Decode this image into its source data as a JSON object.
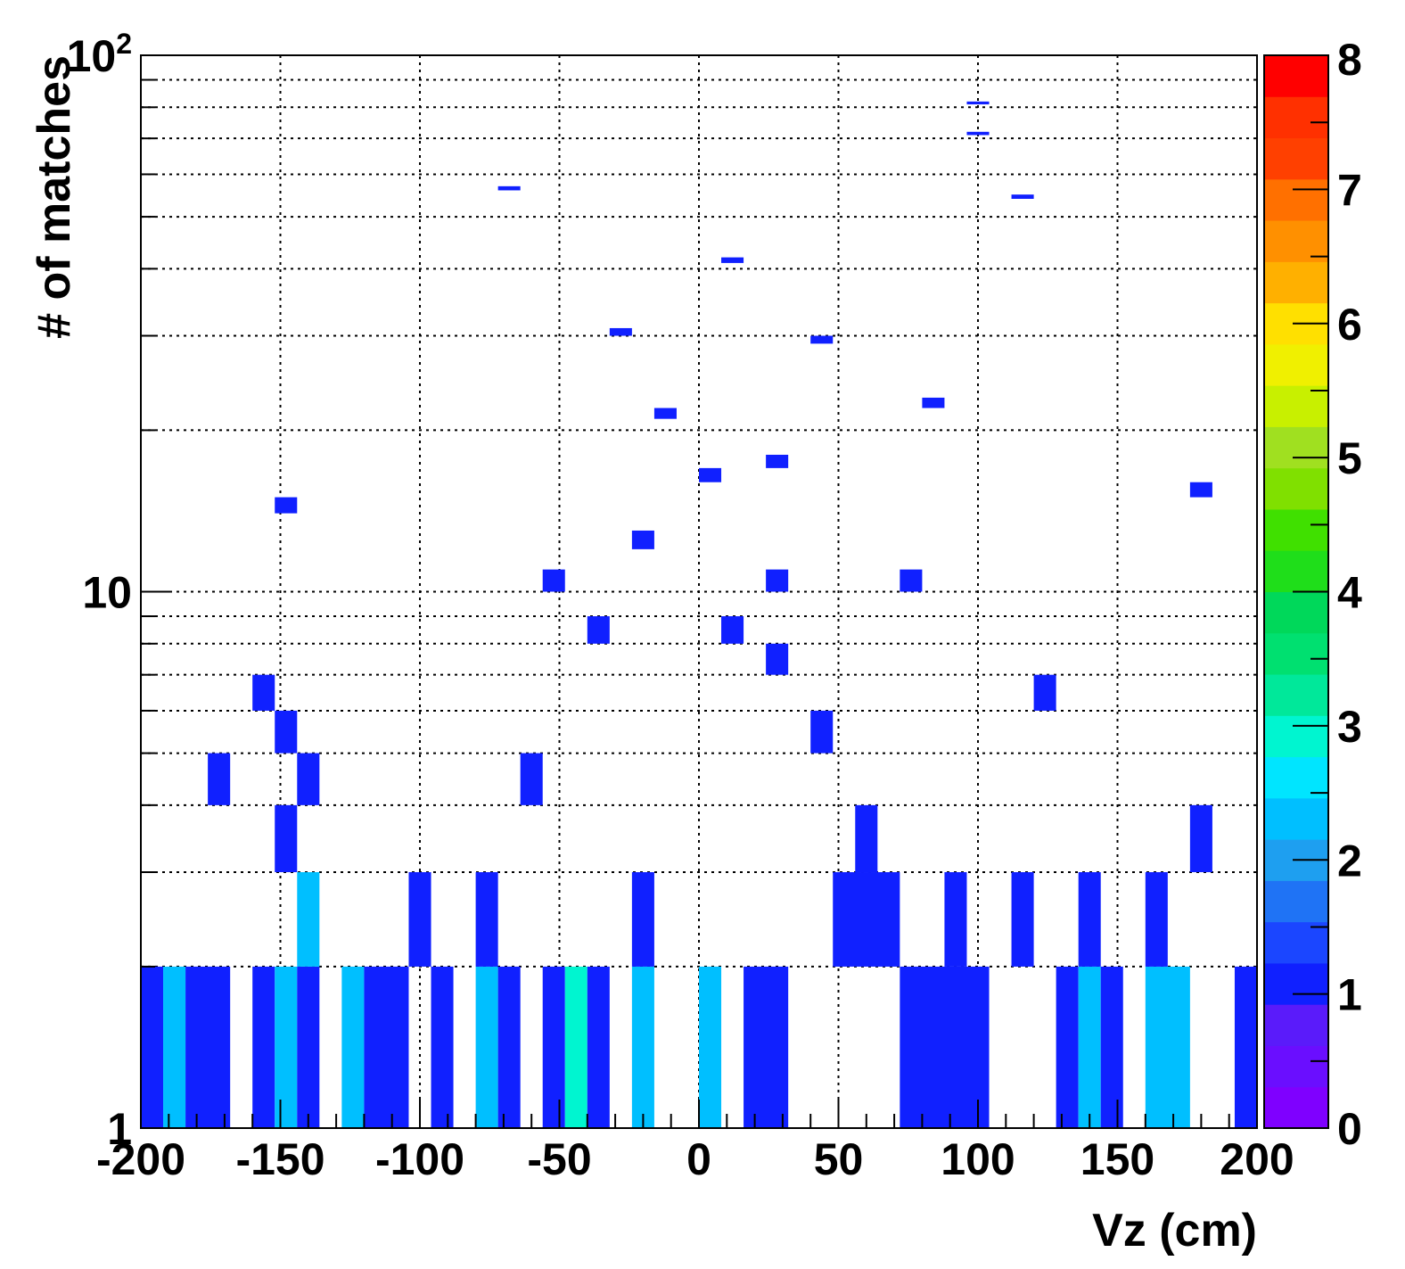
{
  "chart_data": {
    "type": "heatmap",
    "title": "",
    "xlabel": "Vz (cm)",
    "ylabel": "# of matches",
    "xlim": [
      -200,
      200
    ],
    "ylim": [
      1,
      100
    ],
    "y_scale": "log",
    "grid": true,
    "x_bin_width": 8,
    "x_ticks": [
      "-200",
      "-150",
      "-100",
      "-50",
      "0",
      "50",
      "100",
      "150",
      "200"
    ],
    "x_tick_values": [
      -200,
      -150,
      -100,
      -50,
      0,
      50,
      100,
      150,
      200
    ],
    "y_ticks": [
      {
        "value": 1,
        "base": "1",
        "exp": ""
      },
      {
        "value": 10,
        "base": "10",
        "exp": ""
      },
      {
        "value": 100,
        "base": "10",
        "exp": "2"
      }
    ],
    "colorbar": {
      "min": 0,
      "max": 8,
      "ticks": [
        "0",
        "1",
        "2",
        "3",
        "4",
        "5",
        "6",
        "7",
        "8"
      ],
      "palette": [
        "#7f00ff",
        "#6a0eff",
        "#5a1bfa",
        "#1020ff",
        "#1b46ff",
        "#1f73f5",
        "#1e9ff0",
        "#00bfff",
        "#00e5ff",
        "#00f5d0",
        "#00e89a",
        "#00e070",
        "#00d85a",
        "#1fde1a",
        "#40e000",
        "#80e000",
        "#a0e020",
        "#c8f000",
        "#f0f000",
        "#ffe000",
        "#ffb000",
        "#ff9000",
        "#ff7000",
        "#ff4000",
        "#ff3000",
        "#ff0000"
      ]
    },
    "cells": [
      {
        "x0": -200,
        "x1": -192,
        "y0": 1,
        "y1": 2,
        "v": 1
      },
      {
        "x0": -192,
        "x1": -184,
        "y0": 1,
        "y1": 2,
        "v": 2
      },
      {
        "x0": -184,
        "x1": -168,
        "y0": 1,
        "y1": 2,
        "v": 1
      },
      {
        "x0": -160,
        "x1": -152,
        "y0": 1,
        "y1": 2,
        "v": 1
      },
      {
        "x0": -152,
        "x1": -144,
        "y0": 1,
        "y1": 2,
        "v": 2
      },
      {
        "x0": -144,
        "x1": -136,
        "y0": 1,
        "y1": 2,
        "v": 1
      },
      {
        "x0": -128,
        "x1": -120,
        "y0": 1,
        "y1": 2,
        "v": 2
      },
      {
        "x0": -120,
        "x1": -104,
        "y0": 1,
        "y1": 2,
        "v": 1
      },
      {
        "x0": -96,
        "x1": -88,
        "y0": 1,
        "y1": 2,
        "v": 1
      },
      {
        "x0": -80,
        "x1": -72,
        "y0": 1,
        "y1": 2,
        "v": 2
      },
      {
        "x0": -72,
        "x1": -64,
        "y0": 1,
        "y1": 2,
        "v": 1
      },
      {
        "x0": -56,
        "x1": -48,
        "y0": 1,
        "y1": 2,
        "v": 1
      },
      {
        "x0": -48,
        "x1": -40,
        "y0": 1,
        "y1": 2,
        "v": 3
      },
      {
        "x0": -40,
        "x1": -32,
        "y0": 1,
        "y1": 2,
        "v": 1
      },
      {
        "x0": -24,
        "x1": -16,
        "y0": 1,
        "y1": 2,
        "v": 2
      },
      {
        "x0": 0,
        "x1": 8,
        "y0": 1,
        "y1": 2,
        "v": 2
      },
      {
        "x0": 16,
        "x1": 32,
        "y0": 1,
        "y1": 2,
        "v": 1
      },
      {
        "x0": 72,
        "x1": 104,
        "y0": 1,
        "y1": 2,
        "v": 1
      },
      {
        "x0": 128,
        "x1": 136,
        "y0": 1,
        "y1": 2,
        "v": 1
      },
      {
        "x0": 136,
        "x1": 144,
        "y0": 1,
        "y1": 2,
        "v": 2
      },
      {
        "x0": 144,
        "x1": 152,
        "y0": 1,
        "y1": 2,
        "v": 1
      },
      {
        "x0": 160,
        "x1": 176,
        "y0": 1,
        "y1": 2,
        "v": 2
      },
      {
        "x0": 192,
        "x1": 200,
        "y0": 1,
        "y1": 2,
        "v": 1
      },
      {
        "x0": -144,
        "x1": -136,
        "y0": 2,
        "y1": 3,
        "v": 2
      },
      {
        "x0": -104,
        "x1": -96,
        "y0": 2,
        "y1": 3,
        "v": 1
      },
      {
        "x0": -80,
        "x1": -72,
        "y0": 2,
        "y1": 3,
        "v": 1
      },
      {
        "x0": -24,
        "x1": -16,
        "y0": 2,
        "y1": 3,
        "v": 1
      },
      {
        "x0": 48,
        "x1": 72,
        "y0": 2,
        "y1": 3,
        "v": 1
      },
      {
        "x0": 88,
        "x1": 96,
        "y0": 2,
        "y1": 3,
        "v": 1
      },
      {
        "x0": 112,
        "x1": 120,
        "y0": 2,
        "y1": 3,
        "v": 1
      },
      {
        "x0": 136,
        "x1": 144,
        "y0": 2,
        "y1": 3,
        "v": 1
      },
      {
        "x0": 160,
        "x1": 168,
        "y0": 2,
        "y1": 3,
        "v": 1
      },
      {
        "x0": -152,
        "x1": -144,
        "y0": 3,
        "y1": 4,
        "v": 1
      },
      {
        "x0": 56,
        "x1": 64,
        "y0": 3,
        "y1": 4,
        "v": 1
      },
      {
        "x0": 176,
        "x1": 184,
        "y0": 3,
        "y1": 4,
        "v": 1
      },
      {
        "x0": -176,
        "x1": -168,
        "y0": 4,
        "y1": 5,
        "v": 1
      },
      {
        "x0": -144,
        "x1": -136,
        "y0": 4,
        "y1": 5,
        "v": 1
      },
      {
        "x0": -64,
        "x1": -56,
        "y0": 4,
        "y1": 5,
        "v": 1
      },
      {
        "x0": -152,
        "x1": -144,
        "y0": 5,
        "y1": 6,
        "v": 1
      },
      {
        "x0": 40,
        "x1": 48,
        "y0": 5,
        "y1": 6,
        "v": 1
      },
      {
        "x0": -160,
        "x1": -152,
        "y0": 6,
        "y1": 7,
        "v": 1
      },
      {
        "x0": 120,
        "x1": 128,
        "y0": 6,
        "y1": 7,
        "v": 1
      },
      {
        "x0": 24,
        "x1": 32,
        "y0": 7,
        "y1": 8,
        "v": 1
      },
      {
        "x0": -40,
        "x1": -32,
        "y0": 8,
        "y1": 9,
        "v": 1
      },
      {
        "x0": 8,
        "x1": 16,
        "y0": 8,
        "y1": 9,
        "v": 1
      },
      {
        "x0": -56,
        "x1": -48,
        "y0": 10,
        "y1": 11,
        "v": 1
      },
      {
        "x0": 24,
        "x1": 32,
        "y0": 10,
        "y1": 11,
        "v": 1
      },
      {
        "x0": 72,
        "x1": 80,
        "y0": 10,
        "y1": 11,
        "v": 1
      },
      {
        "x0": -24,
        "x1": -16,
        "y0": 12,
        "y1": 13,
        "v": 1
      },
      {
        "x0": -152,
        "x1": -144,
        "y0": 14,
        "y1": 15,
        "v": 1
      },
      {
        "x0": 176,
        "x1": 184,
        "y0": 15,
        "y1": 16,
        "v": 1
      },
      {
        "x0": 0,
        "x1": 8,
        "y0": 16,
        "y1": 17,
        "v": 1
      },
      {
        "x0": 24,
        "x1": 32,
        "y0": 17,
        "y1": 18,
        "v": 1
      },
      {
        "x0": -16,
        "x1": -8,
        "y0": 21,
        "y1": 22,
        "v": 1
      },
      {
        "x0": 80,
        "x1": 88,
        "y0": 22,
        "y1": 23,
        "v": 1
      },
      {
        "x0": -32,
        "x1": -24,
        "y0": 30,
        "y1": 31,
        "v": 1
      },
      {
        "x0": 40,
        "x1": 48,
        "y0": 29,
        "y1": 30,
        "v": 1
      },
      {
        "x0": 8,
        "x1": 16,
        "y0": 41,
        "y1": 42,
        "v": 1
      },
      {
        "x0": -72,
        "x1": -64,
        "y0": 56,
        "y1": 57,
        "v": 1
      },
      {
        "x0": 112,
        "x1": 120,
        "y0": 54,
        "y1": 55,
        "v": 1
      },
      {
        "x0": 96,
        "x1": 104,
        "y0": 71,
        "y1": 72,
        "v": 1
      },
      {
        "x0": 96,
        "x1": 104,
        "y0": 81,
        "y1": 82,
        "v": 1
      }
    ]
  }
}
